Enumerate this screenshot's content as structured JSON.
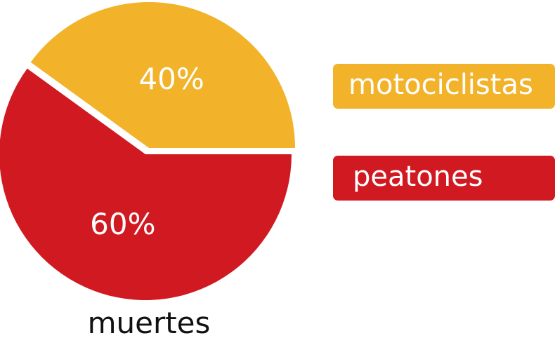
{
  "chart_data": {
    "type": "pie",
    "title": "",
    "caption": "muertes",
    "slices": [
      {
        "label": "motociclistas",
        "value": 40,
        "value_label": "40%",
        "color": "#f2b229",
        "exploded": true
      },
      {
        "label": "peatones",
        "value": 60,
        "value_label": "60%",
        "color": "#d01920",
        "exploded": false
      }
    ],
    "legend_position": "right"
  }
}
